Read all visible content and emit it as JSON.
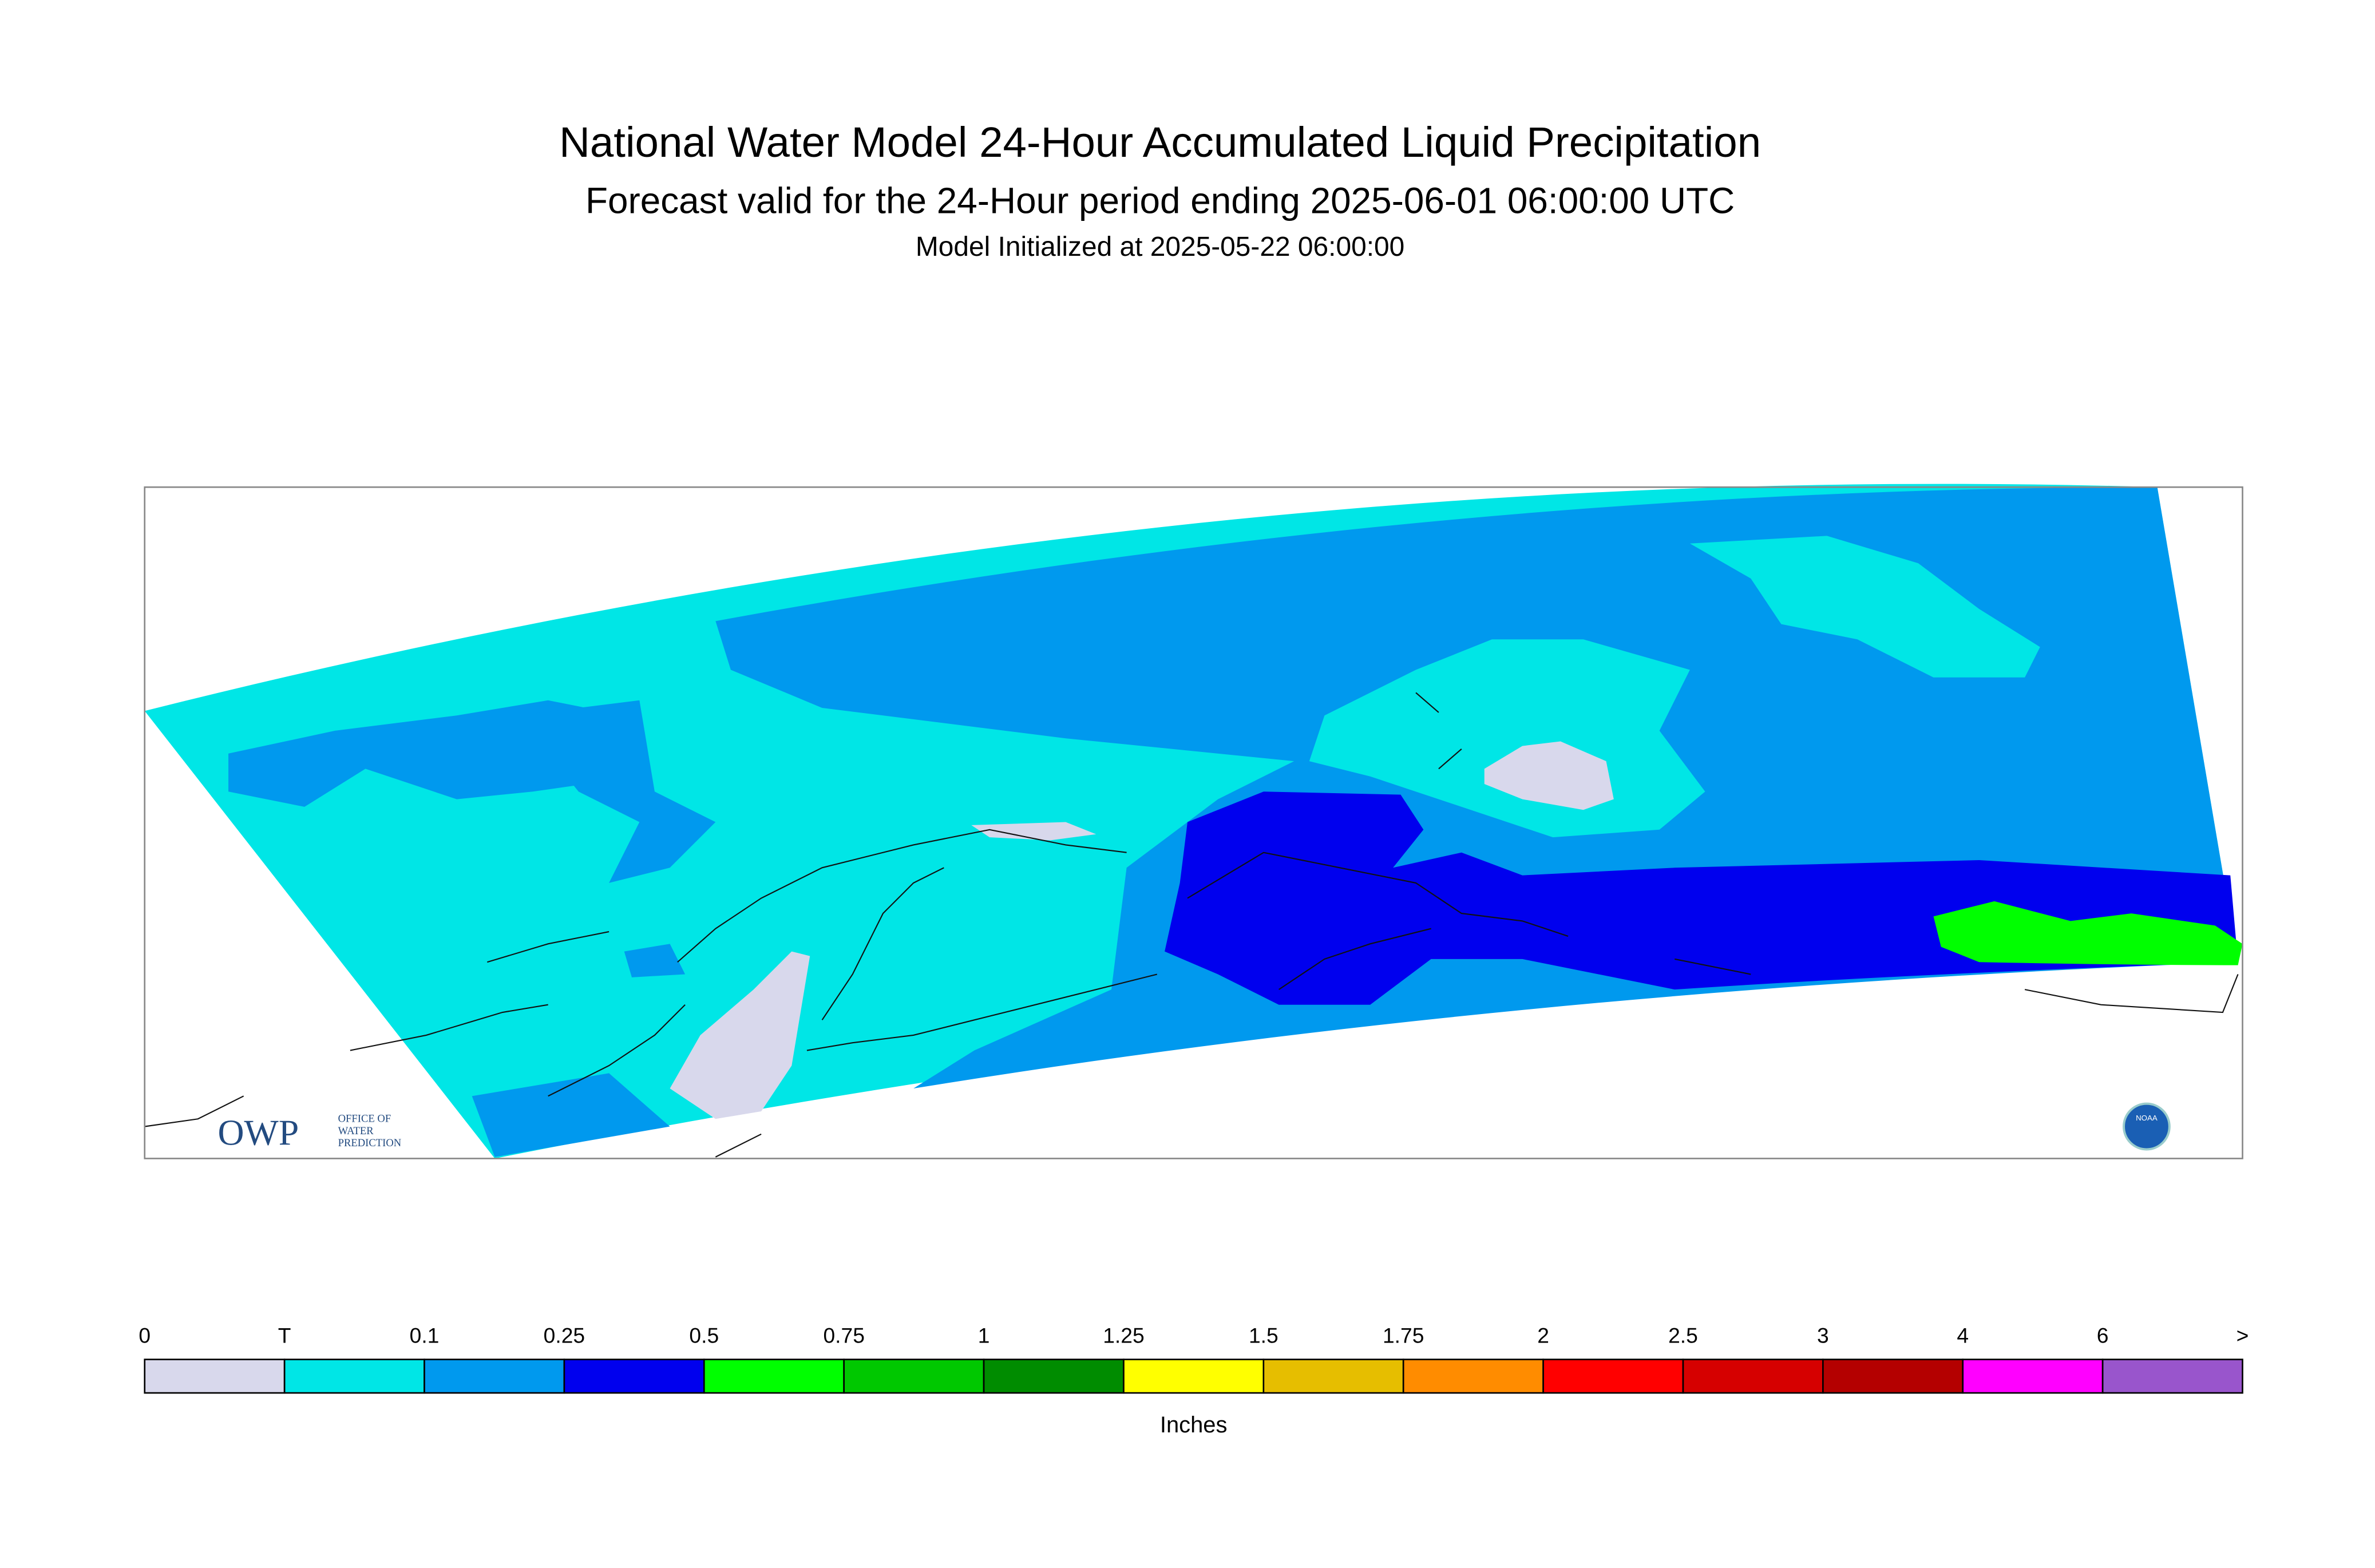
{
  "header": {
    "title": "National Water Model 24-Hour Accumulated Liquid Precipitation",
    "subtitle": "Forecast valid for the 24-Hour period ending 2025-06-01 06:00:00 UTC",
    "initialized": "Model Initialized at 2025-05-22 06:00:00"
  },
  "legend": {
    "labels": [
      "0",
      "T",
      "0.1",
      "0.25",
      "0.5",
      "0.75",
      "1",
      "1.25",
      "1.5",
      "1.75",
      "2",
      "2.5",
      "3",
      "4",
      "6",
      ">"
    ],
    "colors": [
      "#d8d8ec",
      "#00e6e6",
      "#0099ee",
      "#0000ee",
      "#00ff00",
      "#00c800",
      "#008c00",
      "#ffff00",
      "#e6be00",
      "#ff8c00",
      "#ff0000",
      "#d60000",
      "#b40000",
      "#ff00ff",
      "#9955cc"
    ],
    "unit": "Inches"
  },
  "logos": {
    "owp": "OWP",
    "owp_name": [
      "OFFICE OF",
      "WATER",
      "PREDICTION"
    ],
    "noaa": "NOAA"
  }
}
